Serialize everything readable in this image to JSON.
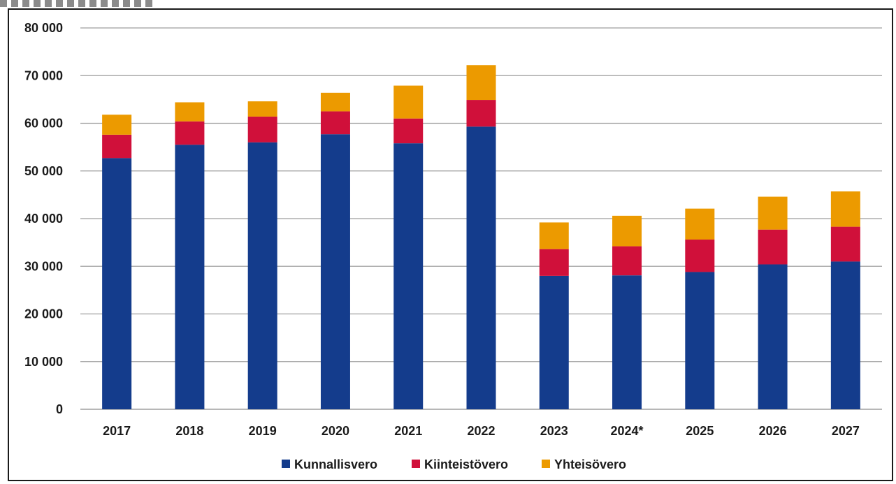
{
  "chart_data": {
    "type": "bar",
    "stacked": true,
    "categories": [
      "2017",
      "2018",
      "2019",
      "2020",
      "2021",
      "2022",
      "2023",
      "2024*",
      "2025",
      "2026",
      "2027"
    ],
    "series": [
      {
        "name": "Kunnallisvero",
        "color": "#143c8c",
        "values": [
          52700,
          55500,
          56000,
          57700,
          55800,
          59300,
          28000,
          28100,
          28800,
          30400,
          31000
        ]
      },
      {
        "name": "Kiinteistövero",
        "color": "#d0103a",
        "values": [
          4900,
          4900,
          5400,
          4800,
          5200,
          5600,
          5600,
          6100,
          6800,
          7300,
          7300
        ]
      },
      {
        "name": "Yhteisövero",
        "color": "#ec9a00",
        "values": [
          4200,
          4000,
          3200,
          3900,
          6900,
          7300,
          5600,
          6400,
          6500,
          6900,
          7400
        ]
      }
    ],
    "title": "",
    "xlabel": "",
    "ylabel": "",
    "ylim": [
      0,
      80000
    ],
    "yticks": [
      0,
      10000,
      20000,
      30000,
      40000,
      50000,
      60000,
      70000,
      80000
    ],
    "ytick_labels": [
      "0",
      "10 000",
      "20 000",
      "30 000",
      "40 000",
      "50 000",
      "60 000",
      "70 000",
      "80 000"
    ],
    "grid": true,
    "legend_position": "bottom"
  }
}
